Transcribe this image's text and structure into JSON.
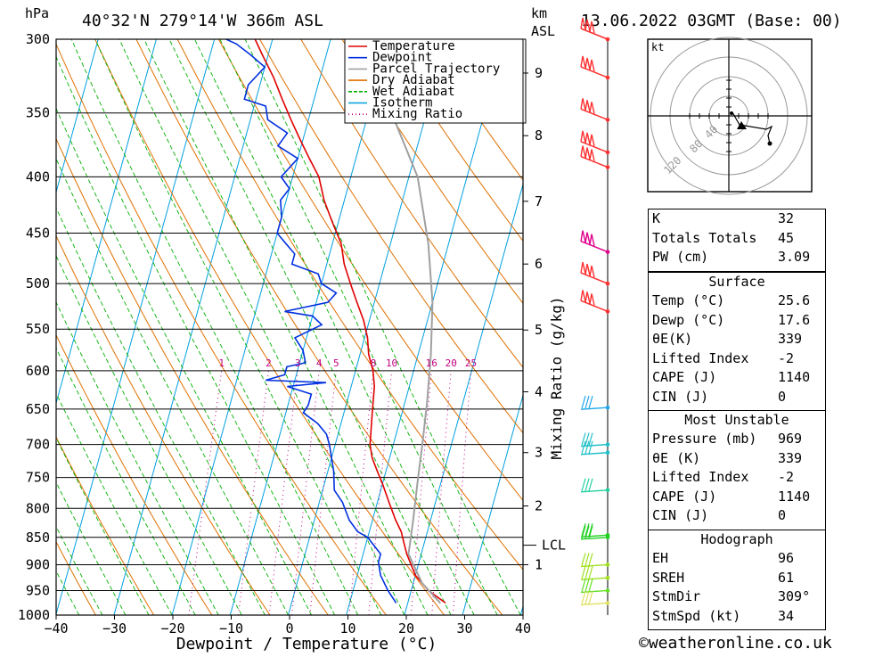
{
  "header": {
    "hpa_unit": "hPa",
    "location": "40°32'N  279°14'W  366m  ASL",
    "km_unit": "km",
    "asl_unit": "ASL",
    "datetime": "13.06.2022  03GMT  (Base: 00)"
  },
  "credit": "©weatheronline.co.uk",
  "hodograph": {
    "unit": "kt",
    "ring_labels": [
      "40",
      "80",
      "120"
    ]
  },
  "chart_data": {
    "type": "line",
    "xlabel": "Dewpoint / Temperature (°C)",
    "ylabel": "Mixing Ratio (g/kg)",
    "x_ticks": [
      "−40",
      "−30",
      "−20",
      "−10",
      "0",
      "10",
      "20",
      "30",
      "40"
    ],
    "pressure_levels": [
      "300",
      "350",
      "400",
      "450",
      "500",
      "550",
      "600",
      "650",
      "700",
      "750",
      "800",
      "850",
      "900",
      "950",
      "1000"
    ],
    "km_ticks": [
      {
        "label": "9",
        "p": 322
      },
      {
        "label": "8",
        "p": 367
      },
      {
        "label": "7",
        "p": 421
      },
      {
        "label": "6",
        "p": 480
      },
      {
        "label": "5",
        "p": 551
      },
      {
        "label": "4",
        "p": 627
      },
      {
        "label": "3",
        "p": 712
      },
      {
        "label": "2",
        "p": 796
      },
      {
        "label": "1",
        "p": 900
      }
    ],
    "lcl_label": "LCL",
    "lcl_pressure": 864,
    "mixing_ratio_labels": [
      "1",
      "2",
      "3",
      "4",
      "5",
      "8",
      "10",
      "16",
      "20",
      "25"
    ],
    "legend": [
      {
        "name": "Temperature",
        "color": "#e00000",
        "style": "solid"
      },
      {
        "name": "Dewpoint",
        "color": "#0030e0",
        "style": "solid"
      },
      {
        "name": "Parcel Trajectory",
        "color": "#a0a0a0",
        "style": "solid"
      },
      {
        "name": "Dry Adiabat",
        "color": "#e07000",
        "style": "solid"
      },
      {
        "name": "Wet Adiabat",
        "color": "#00b000",
        "style": "dashed"
      },
      {
        "name": "Isotherm",
        "color": "#00a0e0",
        "style": "solid"
      },
      {
        "name": "Mixing Ratio",
        "color": "#c00080",
        "style": "dotted"
      }
    ],
    "series": [
      {
        "name": "Temperature",
        "color": "#e00000",
        "points": [
          [
            26.5,
            975
          ],
          [
            23,
            950
          ],
          [
            20,
            920
          ],
          [
            17.5,
            880
          ],
          [
            16.5,
            860
          ],
          [
            15.5,
            840
          ],
          [
            14,
            820
          ],
          [
            12,
            790
          ],
          [
            10,
            760
          ],
          [
            8.5,
            740
          ],
          [
            7,
            720
          ],
          [
            6,
            700
          ],
          [
            5.5,
            680
          ],
          [
            5,
            660
          ],
          [
            4.5,
            640
          ],
          [
            4,
            620
          ],
          [
            3,
            600
          ],
          [
            1.5,
            580
          ],
          [
            0.5,
            560
          ],
          [
            -1,
            540
          ],
          [
            -3,
            520
          ],
          [
            -5,
            500
          ],
          [
            -7,
            480
          ],
          [
            -8.5,
            460
          ],
          [
            -11,
            440
          ],
          [
            -13.5,
            420
          ],
          [
            -15.5,
            400
          ],
          [
            -18,
            385
          ],
          [
            -20.5,
            370
          ],
          [
            -23,
            355
          ],
          [
            -25.5,
            340
          ],
          [
            -28,
            325
          ],
          [
            -31,
            310
          ],
          [
            -33,
            300
          ]
        ]
      },
      {
        "name": "Dewpoint",
        "color": "#0030e0",
        "points": [
          [
            18,
            975
          ],
          [
            16,
            950
          ],
          [
            14,
            920
          ],
          [
            13,
            895
          ],
          [
            13,
            880
          ],
          [
            11,
            860
          ],
          [
            10,
            850
          ],
          [
            8,
            840
          ],
          [
            6,
            820
          ],
          [
            4,
            790
          ],
          [
            2,
            770
          ],
          [
            1,
            740
          ],
          [
            0,
            720
          ],
          [
            -1,
            700
          ],
          [
            -2,
            685
          ],
          [
            -4,
            670
          ],
          [
            -7,
            655
          ],
          [
            -6.5,
            645
          ],
          [
            -6.5,
            630
          ],
          [
            -11,
            620
          ],
          [
            -4.5,
            615
          ],
          [
            -15,
            612
          ],
          [
            -12,
            605
          ],
          [
            -12,
            595
          ],
          [
            -9,
            590
          ],
          [
            -10,
            575
          ],
          [
            -12,
            560
          ],
          [
            -8,
            545
          ],
          [
            -10,
            535
          ],
          [
            -15,
            530
          ],
          [
            -8,
            520
          ],
          [
            -7,
            510
          ],
          [
            -10,
            500
          ],
          [
            -11,
            490
          ],
          [
            -16,
            480
          ],
          [
            -16,
            470
          ],
          [
            -18,
            460
          ],
          [
            -20,
            450
          ],
          [
            -20,
            435
          ],
          [
            -21,
            420
          ],
          [
            -20,
            410
          ],
          [
            -22,
            400
          ],
          [
            -20,
            385
          ],
          [
            -24,
            375
          ],
          [
            -23,
            365
          ],
          [
            -27,
            355
          ],
          [
            -28,
            345
          ],
          [
            -32,
            340
          ],
          [
            -32,
            330
          ],
          [
            -30,
            318
          ],
          [
            -33,
            310
          ],
          [
            -36,
            303
          ],
          [
            -38,
            300
          ]
        ]
      },
      {
        "name": "Parcel Trajectory",
        "color": "#a0a0a0",
        "points": [
          [
            25.6,
            975
          ],
          [
            21.5,
            935
          ],
          [
            17.8,
            880
          ],
          [
            17.6,
            864
          ],
          [
            17,
            820
          ],
          [
            16,
            760
          ],
          [
            15,
            700
          ],
          [
            13.8,
            640
          ],
          [
            12.2,
            580
          ],
          [
            10,
            520
          ],
          [
            6.5,
            460
          ],
          [
            1.5,
            400
          ],
          [
            -6,
            350
          ],
          [
            -15,
            300
          ]
        ]
      }
    ],
    "winds": [
      {
        "p": 300,
        "color": "#ff3030"
      },
      {
        "p": 325,
        "color": "#ff3030"
      },
      {
        "p": 355,
        "color": "#ff3030"
      },
      {
        "p": 380,
        "color": "#ff3030"
      },
      {
        "p": 392,
        "color": "#ff3030"
      },
      {
        "p": 468,
        "color": "#e0008c"
      },
      {
        "p": 500,
        "color": "#ff3030"
      },
      {
        "p": 530,
        "color": "#ff3030"
      },
      {
        "p": 648,
        "color": "#20a8e8"
      },
      {
        "p": 700,
        "color": "#20c0c8"
      },
      {
        "p": 712,
        "color": "#20c0c8"
      },
      {
        "p": 770,
        "color": "#20d0a0"
      },
      {
        "p": 846,
        "color": "#20d020"
      },
      {
        "p": 850,
        "color": "#20d020"
      },
      {
        "p": 900,
        "color": "#a0e020"
      },
      {
        "p": 925,
        "color": "#a0e020"
      },
      {
        "p": 950,
        "color": "#60e020"
      },
      {
        "p": 975,
        "color": "#e0e060"
      }
    ]
  },
  "indices": {
    "block1": [
      {
        "label": "K",
        "value": "32"
      },
      {
        "label": "Totals Totals",
        "value": "45"
      },
      {
        "label": "PW (cm)",
        "value": "3.09"
      }
    ],
    "surface": {
      "title": "Surface",
      "rows": [
        {
          "label": "Temp (°C)",
          "value": "25.6"
        },
        {
          "label": "Dewp (°C)",
          "value": "17.6"
        },
        {
          "label": "θE(K)",
          "value": "339"
        },
        {
          "label": "Lifted Index",
          "value": "-2"
        },
        {
          "label": "CAPE (J)",
          "value": "1140"
        },
        {
          "label": "CIN (J)",
          "value": "0"
        }
      ]
    },
    "most_unstable": {
      "title": "Most Unstable",
      "rows": [
        {
          "label": "Pressure (mb)",
          "value": "969"
        },
        {
          "label": "θE (K)",
          "value": "339"
        },
        {
          "label": "Lifted Index",
          "value": "-2"
        },
        {
          "label": "CAPE (J)",
          "value": "1140"
        },
        {
          "label": "CIN (J)",
          "value": "0"
        }
      ]
    },
    "hodograph_block": {
      "title": "Hodograph",
      "rows": [
        {
          "label": "EH",
          "value": "96"
        },
        {
          "label": "SREH",
          "value": "61"
        },
        {
          "label": "StmDir",
          "value": "309°"
        },
        {
          "label": "StmSpd (kt)",
          "value": "34"
        }
      ]
    }
  }
}
